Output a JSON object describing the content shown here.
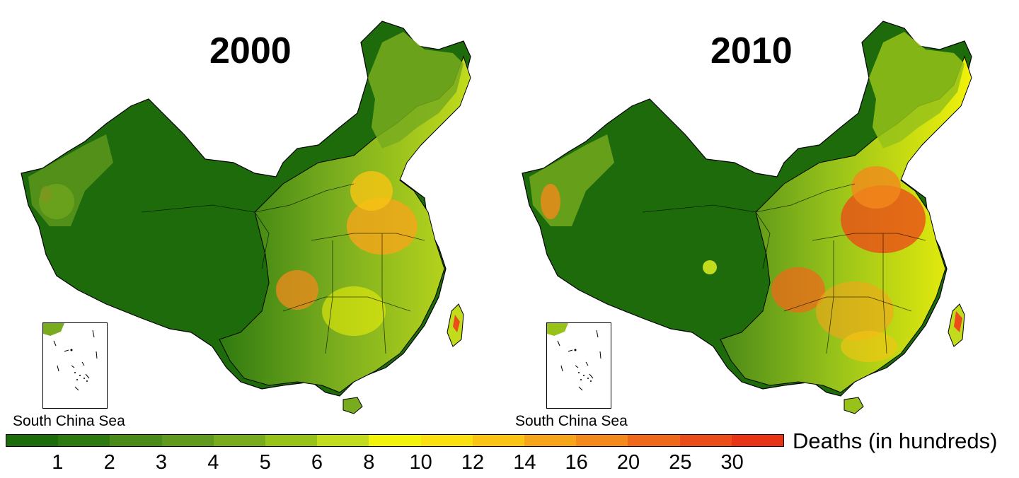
{
  "maps": [
    {
      "title": "2000",
      "inset_label": "South China Sea"
    },
    {
      "title": "2010",
      "inset_label": "South China Sea"
    }
  ],
  "legend": {
    "title": "Deaths (in hundreds)",
    "ticks": [
      "1",
      "2",
      "3",
      "4",
      "5",
      "6",
      "8",
      "10",
      "12",
      "14",
      "16",
      "20",
      "25",
      "30"
    ],
    "colors": [
      "#1e6b0c",
      "#2f7a10",
      "#4a8a18",
      "#5f9a1e",
      "#78ac1e",
      "#97c21a",
      "#c2db1c",
      "#f2f20a",
      "#fbe00f",
      "#f9c414",
      "#f6a51a",
      "#f28a1c",
      "#ee6a1a",
      "#ea4d18",
      "#e83416"
    ]
  },
  "colors": {
    "dark_green": "#1a6410",
    "mid_green": "#4a8a18",
    "light_green": "#97c21a",
    "yellow": "#f2f20a",
    "orange": "#f28a1c",
    "red": "#e83416"
  }
}
